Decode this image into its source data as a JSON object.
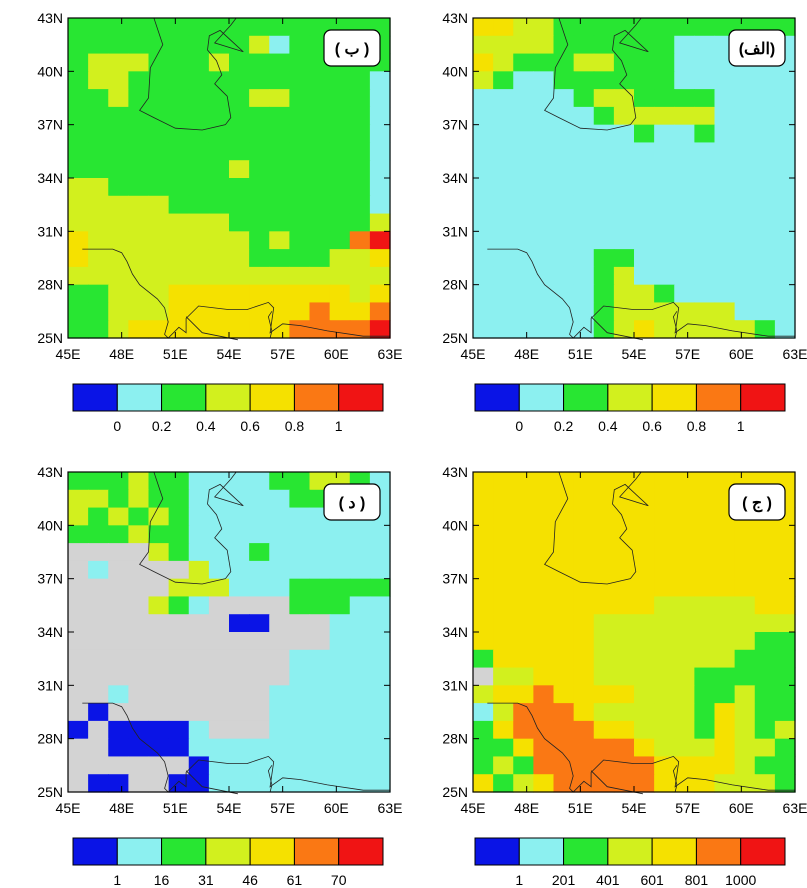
{
  "palette_colors": [
    "#0a14e6",
    "#8cf0f0",
    "#28e632",
    "#d2f01e",
    "#f5e100",
    "#fa7814",
    "#f01414"
  ],
  "missing_color": "#d3d3d3",
  "x_tick_labels": [
    "45E",
    "48E",
    "51E",
    "54E",
    "57E",
    "60E",
    "63E"
  ],
  "y_tick_labels": [
    "43N",
    "40N",
    "37N",
    "34N",
    "31N",
    "28N",
    "25N"
  ],
  "panels": [
    {
      "id": "b",
      "label": "( ب )",
      "colorbar_labels": [
        "0",
        "0.2",
        "0.4",
        "0.6",
        "0.8",
        "1"
      ],
      "grid": [
        "2222222222222222",
        "2222222223122222",
        "2333222322222222",
        "2332222222222221",
        "2232222223322221",
        "2222222222222221",
        "2222222222222221",
        "2222222222222221",
        "2222222232222221",
        "3322222222222221",
        "3333322222222221",
        "3333333322222223",
        "4333333332322256",
        "4333333332222334",
        "3333333333333333",
        "2233344444444434",
        "2233344444445445",
        "2234444444455556"
      ]
    },
    {
      "id": "alef",
      "label": "(الف)",
      "colorbar_labels": [
        "0",
        "0.2",
        "0.4",
        "0.6",
        "0.8",
        "1"
      ],
      "grid": [
        "4433222222222222",
        "3333222222111111",
        "4322233222111111",
        "3211222222111111",
        "1111123322221111",
        "1111112333331111",
        "1111111121121111",
        "1111111111111111",
        "1111111111111111",
        "1111111111111111",
        "1111111111111111",
        "1111111111111111",
        "1111111111111111",
        "1111112211111111",
        "1111112311111111",
        "1111112332111111",
        "1111112333333111",
        "1111112343333321"
      ]
    },
    {
      "id": "dal",
      "label": "( د )",
      "colorbar_labels": [
        "1",
        "16",
        "31",
        "46",
        "61",
        "70"
      ],
      "grid": [
        "2223221111223321",
        "3323221111122221",
        "3232321111111111",
        "2223221111111111",
        "9999321112111111",
        "9199993111111111",
        "9999933311122222",
        "9999321999922211",
        "9999999900999111",
        "9999999999999111",
        "9999999999911111",
        "9999999999911111",
        "9919999999111111",
        "9099999999111111",
        "0900001999111111",
        "9900001111111111",
        "9999990111111111",
        "9009900111111111"
      ]
    },
    {
      "id": "jim",
      "label": "( ج )",
      "colorbar_labels": [
        "1",
        "201",
        "401",
        "601",
        "801",
        "1000"
      ],
      "grid": [
        "4444444444444444",
        "4444444444444444",
        "4444444444444444",
        "4444444444444444",
        "4444444444444444",
        "4444444444444444",
        "4444444444444444",
        "4444444443333344",
        "4444443333333333",
        "4444443333333322",
        "2444443333333222",
        "9334443333322222",
        "3445444433322322",
        "1355543333324322",
        "2455554433324323",
        "2245555543334332",
        "2325555554444322",
        "4234555554443332"
      ]
    }
  ]
}
